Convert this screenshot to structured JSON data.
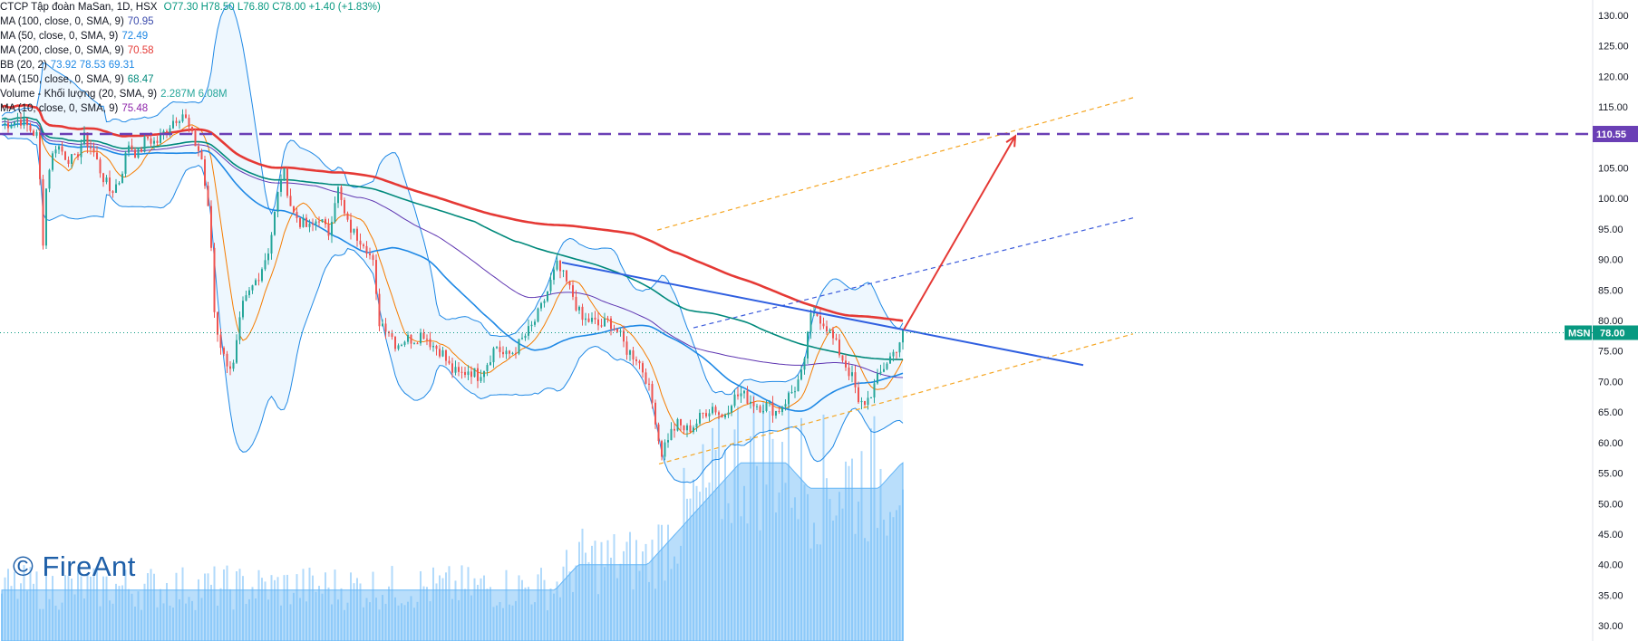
{
  "header": {
    "title": "CTCP Tập đoàn MaSan, 1D, HSX",
    "ohlc": "O77.30  H78.50  L76.80  C78.00  +1.40 (+1.83%)"
  },
  "legend": [
    {
      "label": "MA (100, close, 0, SMA, 9)",
      "value": "70.95",
      "color": "#3949ab"
    },
    {
      "label": "MA (50, close, 0, SMA, 9)",
      "value": "72.49",
      "color": "#1e88e5"
    },
    {
      "label": "MA (200, close, 0, SMA, 9)",
      "value": "70.58",
      "color": "#e53935"
    },
    {
      "label": "BB (20, 2)",
      "value": "73.92  78.53  69.31",
      "color": "#1e88e5"
    },
    {
      "label": "MA (150, close, 0, SMA, 9)",
      "value": "68.47",
      "color": "#00897b"
    },
    {
      "label": "Volume - Khối lượng (20, SMA, 9)",
      "value": "2.287M  6.08M",
      "color": "#26a69a"
    },
    {
      "label": "MA (10, close, 0, SMA, 9)",
      "value": "75.48",
      "color": "#8e24aa"
    }
  ],
  "watermark": "© FireAnt",
  "colors": {
    "up": "#26a69a",
    "down": "#ef5350",
    "ma200": "#e53935",
    "ma150": "#00897b",
    "ma50": "#1e88e5",
    "ma100": "#5e35b1",
    "ma10": "#f57c00",
    "bb": "#1e88e5",
    "volume": "#90caf9",
    "target": "#6a3fb5",
    "price_tag": "#089981"
  },
  "chart_data": {
    "type": "candlestick",
    "symbol": "MSN",
    "title": "CTCP Tập đoàn MaSan, 1D, HSX",
    "last_price": 78.0,
    "target_price": 110.55,
    "ylim": [
      27.5,
      132.5
    ],
    "y_ticks": [
      30,
      35,
      40,
      45,
      50,
      55,
      60,
      65,
      70,
      75,
      80,
      85,
      90,
      95,
      100,
      105,
      110,
      115,
      120,
      125,
      130
    ],
    "price_path": [
      [
        0,
        112
      ],
      [
        20,
        113
      ],
      [
        40,
        110
      ],
      [
        45,
        92
      ],
      [
        50,
        104
      ],
      [
        60,
        109
      ],
      [
        70,
        107
      ],
      [
        80,
        106
      ],
      [
        90,
        110
      ],
      [
        100,
        108
      ],
      [
        110,
        104
      ],
      [
        120,
        101
      ],
      [
        130,
        103
      ],
      [
        140,
        109
      ],
      [
        150,
        107
      ],
      [
        160,
        110
      ],
      [
        170,
        109
      ],
      [
        180,
        111
      ],
      [
        190,
        113
      ],
      [
        200,
        114
      ],
      [
        210,
        110
      ],
      [
        220,
        107
      ],
      [
        230,
        95
      ],
      [
        235,
        80
      ],
      [
        245,
        74
      ],
      [
        255,
        72
      ],
      [
        265,
        82
      ],
      [
        275,
        85
      ],
      [
        285,
        88
      ],
      [
        295,
        92
      ],
      [
        305,
        101
      ],
      [
        310,
        105
      ],
      [
        320,
        98
      ],
      [
        330,
        96
      ],
      [
        340,
        95
      ],
      [
        350,
        97
      ],
      [
        360,
        94
      ],
      [
        370,
        102
      ],
      [
        380,
        96
      ],
      [
        390,
        94
      ],
      [
        400,
        93
      ],
      [
        410,
        89
      ],
      [
        415,
        80
      ],
      [
        425,
        79
      ],
      [
        435,
        76
      ],
      [
        445,
        77
      ],
      [
        455,
        77
      ],
      [
        465,
        78
      ],
      [
        475,
        76
      ],
      [
        485,
        75
      ],
      [
        495,
        72
      ],
      [
        505,
        71
      ],
      [
        515,
        72
      ],
      [
        525,
        71
      ],
      [
        535,
        73
      ],
      [
        545,
        76
      ],
      [
        555,
        74
      ],
      [
        565,
        75
      ],
      [
        575,
        77
      ],
      [
        585,
        79
      ],
      [
        595,
        82
      ],
      [
        605,
        86
      ],
      [
        612,
        89
      ],
      [
        620,
        87
      ],
      [
        630,
        84
      ],
      [
        640,
        80
      ],
      [
        650,
        80
      ],
      [
        660,
        79
      ],
      [
        670,
        80
      ],
      [
        680,
        78
      ],
      [
        690,
        75
      ],
      [
        700,
        74
      ],
      [
        710,
        71
      ],
      [
        720,
        65
      ],
      [
        727,
        58
      ],
      [
        735,
        61
      ],
      [
        745,
        63
      ],
      [
        755,
        62
      ],
      [
        765,
        63
      ],
      [
        775,
        65
      ],
      [
        785,
        66
      ],
      [
        795,
        64
      ],
      [
        805,
        67
      ],
      [
        815,
        68
      ],
      [
        825,
        67
      ],
      [
        835,
        66
      ],
      [
        845,
        66
      ],
      [
        855,
        65
      ],
      [
        865,
        67
      ],
      [
        875,
        69
      ],
      [
        885,
        72
      ],
      [
        890,
        80
      ],
      [
        900,
        81
      ],
      [
        910,
        79
      ],
      [
        920,
        76
      ],
      [
        930,
        73
      ],
      [
        940,
        70
      ],
      [
        945,
        66
      ],
      [
        955,
        67
      ],
      [
        965,
        70
      ],
      [
        975,
        73
      ],
      [
        985,
        75
      ],
      [
        995,
        78
      ]
    ],
    "volume_m": [
      2,
      2,
      2,
      2,
      2,
      2,
      2,
      2,
      2,
      2,
      2,
      2,
      2,
      2,
      2,
      2,
      2,
      2,
      2,
      2,
      2,
      2,
      2,
      2,
      2,
      3,
      3,
      3,
      3,
      4,
      5,
      6,
      7,
      7,
      7,
      6,
      6,
      6,
      6,
      7
    ],
    "trendline_resistance": [
      [
        620,
        89.5
      ],
      [
        1195,
        72.7
      ]
    ],
    "channel_upper": [
      [
        725,
        94.8
      ],
      [
        1250,
        116.5
      ]
    ],
    "channel_mid": [
      [
        765,
        78.8
      ],
      [
        1250,
        96.8
      ]
    ],
    "channel_lower": [
      [
        727,
        56.5
      ],
      [
        1250,
        77.8
      ]
    ],
    "target_arrow": [
      [
        997,
        78.5
      ],
      [
        1120,
        110.2
      ]
    ]
  }
}
